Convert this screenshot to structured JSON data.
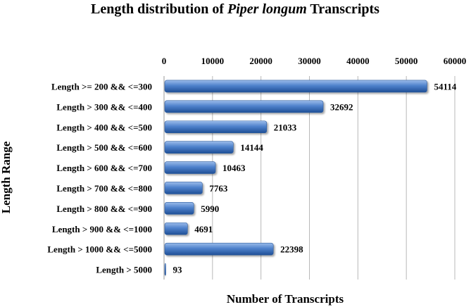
{
  "chart_data": {
    "type": "bar",
    "orientation": "horizontal",
    "title_parts": [
      {
        "text": "Length distribution of ",
        "italic": false
      },
      {
        "text": "Piper longum",
        "italic": true
      },
      {
        "text": " Transcripts",
        "italic": false
      }
    ],
    "xlabel": "Number of Transcripts",
    "ylabel": "Length Range",
    "xlim": [
      0,
      60000
    ],
    "x_ticks": [
      "0",
      "10000",
      "20000",
      "30000",
      "40000",
      "50000",
      "60000"
    ],
    "x_axis_position": "top",
    "grid": "vertical",
    "categories": [
      "Length >= 200 && <=300",
      "Length > 300 && <=400",
      "Length > 400 && <=500",
      "Length > 500 && <=600",
      "Length > 600 && <=700",
      "Length > 700 && <=800",
      "Length > 800 && <=900",
      "Length > 900 && <=1000",
      "Length > 1000 && <=5000",
      "Length > 5000"
    ],
    "values": [
      54114,
      32692,
      21033,
      14144,
      10463,
      7763,
      5990,
      4691,
      22398,
      93
    ],
    "data_labels": [
      "54114",
      "32692",
      "21033",
      "14144",
      "10463",
      "7763",
      "5990",
      "4691",
      "22398",
      "93"
    ],
    "bar_color": "#4a7ec9"
  }
}
